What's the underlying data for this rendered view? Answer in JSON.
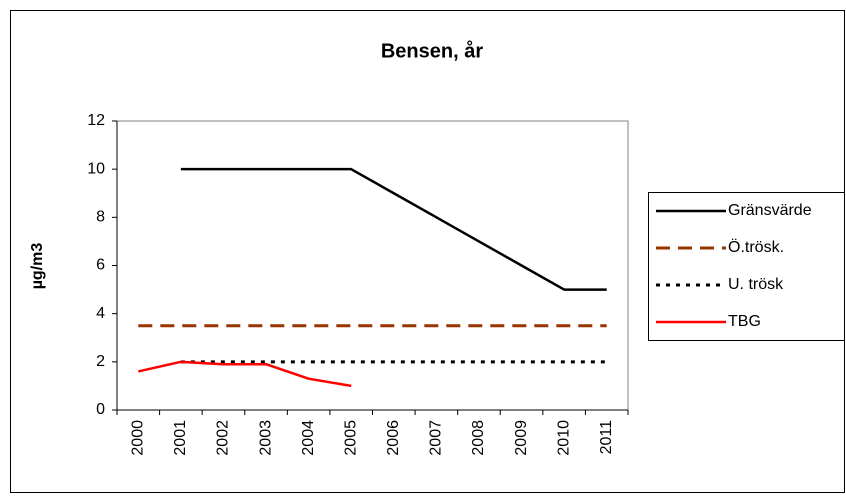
{
  "chart_data": {
    "type": "line",
    "title": "Bensen, år",
    "y_label": "µg/m3",
    "categories": [
      "2000",
      "2001",
      "2002",
      "2003",
      "2004",
      "2005",
      "2006",
      "2007",
      "2008",
      "2009",
      "2010",
      "2011"
    ],
    "series": [
      {
        "name": "Gränsvärde",
        "color": "#000000",
        "line_style": "solid",
        "values": [
          null,
          10,
          10,
          10,
          10,
          10,
          9,
          8,
          7,
          6,
          5,
          5
        ]
      },
      {
        "name": "Ö.trösk.",
        "color": "#993300",
        "line_style": "dashed",
        "values": [
          3.5,
          3.5,
          3.5,
          3.5,
          3.5,
          3.5,
          3.5,
          3.5,
          3.5,
          3.5,
          3.5,
          3.5
        ]
      },
      {
        "name": "U. trösk",
        "color": "#000000",
        "line_style": "dotted",
        "values": [
          null,
          2,
          2,
          2,
          2,
          2,
          2,
          2,
          2,
          2,
          2,
          2
        ]
      },
      {
        "name": "TBG",
        "color": "#ff0000",
        "line_style": "solid",
        "values": [
          1.6,
          2.0,
          1.9,
          1.9,
          1.3,
          1.0,
          null,
          null,
          null,
          null,
          null,
          null
        ]
      }
    ],
    "ylim": [
      0,
      12
    ],
    "yticks": [
      0,
      2,
      4,
      6,
      8,
      10,
      12
    ],
    "grid": false,
    "legend": "right"
  }
}
